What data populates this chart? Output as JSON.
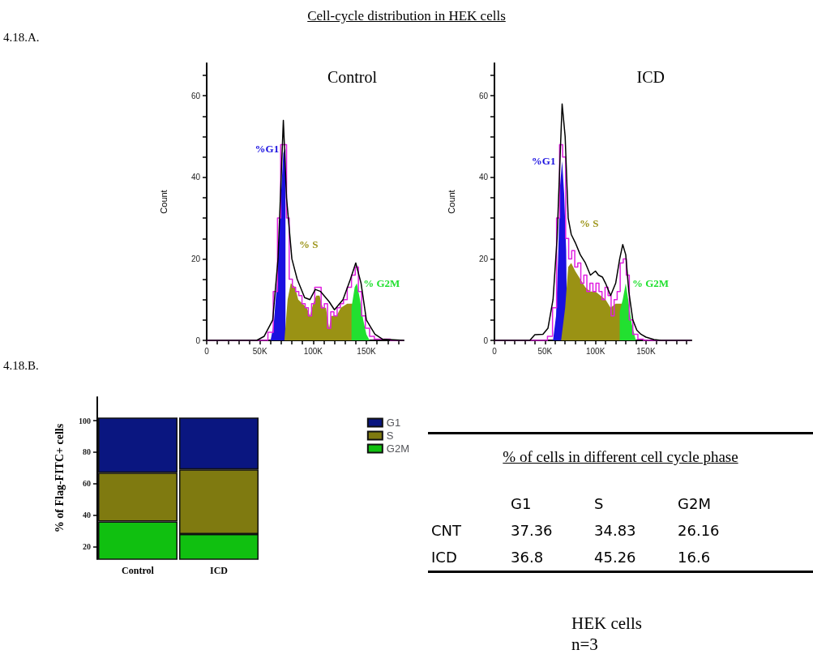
{
  "chart_data": [
    {
      "type": "line",
      "title": "Control",
      "annotations": [
        "Cell-cycle distribution in HEK cells",
        "4.18.A."
      ],
      "ylabel": "Count",
      "xlim": [
        0,
        185000
      ],
      "ylim": [
        0,
        68
      ],
      "xticks": [
        0,
        {
          "value": 10000,
          "label": null
        },
        {
          "value": 20000,
          "label": null
        },
        {
          "value": 30000,
          "label": null
        },
        {
          "value": 40000,
          "label": null
        },
        {
          "value": 50000,
          "label": "50K"
        },
        {
          "value": 60000,
          "label": null
        },
        {
          "value": 70000,
          "label": null
        },
        {
          "value": 80000,
          "label": null
        },
        {
          "value": 90000,
          "label": null
        },
        {
          "value": 100000,
          "label": "100K"
        },
        {
          "value": 110000,
          "label": null
        },
        {
          "value": 120000,
          "label": null
        },
        {
          "value": 130000,
          "label": null
        },
        {
          "value": 140000,
          "label": null
        },
        {
          "value": 150000,
          "label": "150K"
        },
        {
          "value": 160000,
          "label": null
        },
        {
          "value": 170000,
          "label": null
        },
        {
          "value": 180000,
          "label": null
        }
      ],
      "yticks": [
        0,
        {
          "value": 5,
          "label": null
        },
        {
          "value": 10,
          "label": null
        },
        {
          "value": 15,
          "label": null
        },
        20,
        {
          "value": 25,
          "label": null
        },
        {
          "value": 30,
          "label": null
        },
        {
          "value": 35,
          "label": null
        },
        40,
        {
          "value": 45,
          "label": null
        },
        {
          "value": 50,
          "label": null
        },
        {
          "value": 55,
          "label": null
        },
        60,
        {
          "value": 65,
          "label": null
        }
      ],
      "marker": "none",
      "grid": false,
      "legend": false,
      "series": [
        {
          "name": "%G1",
          "type": "area",
          "color": "#1a10e0",
          "x": [
            60000,
            63000,
            66000,
            69000,
            72000,
            74000,
            74000
          ],
          "values": [
            0,
            4,
            14,
            32,
            46,
            47,
            0
          ]
        },
        {
          "name": "% S",
          "type": "area",
          "color": "#9a9214",
          "x": [
            73000,
            76000,
            79000,
            83000,
            86000,
            90000,
            94000,
            97000,
            100000,
            103000,
            106000,
            109000,
            112000,
            115000,
            117000,
            122000,
            126000,
            132000,
            137000,
            137000
          ],
          "values": [
            0,
            10,
            14,
            13,
            10,
            9,
            8,
            6,
            9,
            11,
            11,
            8,
            8,
            3,
            6,
            6,
            8,
            9,
            9,
            0
          ]
        },
        {
          "name": "% G2M",
          "type": "area",
          "color": "#22e030",
          "x": [
            136000,
            136000,
            139000,
            141000,
            144000,
            147000,
            150000,
            153000
          ],
          "values": [
            0,
            8,
            13,
            14,
            10,
            5,
            1.5,
            0
          ]
        },
        {
          "type": "step",
          "color": "#e020e0",
          "x": [
            0,
            55000,
            60000,
            65000,
            68000,
            71000,
            74000,
            76000,
            79000,
            82000,
            85000,
            88000,
            91000,
            94000,
            97000,
            100000,
            103000,
            106000,
            109000,
            112000,
            115000,
            118000,
            121000,
            124000,
            127000,
            130000,
            134000,
            138000,
            141000,
            144000,
            147000,
            151000,
            155000,
            160000,
            185000
          ],
          "values": [
            0,
            0,
            2,
            12,
            30,
            48,
            48,
            30,
            15,
            13,
            12,
            11,
            9,
            8,
            6,
            9,
            13,
            13,
            8,
            9,
            3,
            7,
            6,
            8,
            9,
            10,
            13,
            16,
            18,
            12,
            6,
            3,
            1,
            0.3,
            0
          ]
        },
        {
          "type": "line",
          "color": "#000000",
          "x": [
            0,
            47000,
            54000,
            62000,
            67000,
            72000,
            75000,
            80000,
            85000,
            92000,
            97000,
            102000,
            107000,
            115000,
            120000,
            128000,
            135000,
            140000,
            145000,
            150000,
            158000,
            165000,
            185000
          ],
          "values": [
            0,
            0,
            1,
            5,
            20,
            54,
            35,
            20,
            15,
            10.5,
            10,
            12.5,
            12,
            9.5,
            7.5,
            10,
            15,
            19,
            14,
            5,
            1.5,
            0.3,
            0
          ]
        }
      ]
    },
    {
      "type": "line",
      "title": "ICD",
      "ylabel": "Count",
      "xlim": [
        0,
        195000
      ],
      "ylim": [
        0,
        68
      ],
      "xticks": [
        0,
        {
          "value": 10000,
          "label": null
        },
        {
          "value": 20000,
          "label": null
        },
        {
          "value": 30000,
          "label": null
        },
        {
          "value": 40000,
          "label": null
        },
        {
          "value": 50000,
          "label": "50K"
        },
        {
          "value": 60000,
          "label": null
        },
        {
          "value": 70000,
          "label": null
        },
        {
          "value": 80000,
          "label": null
        },
        {
          "value": 90000,
          "label": null
        },
        {
          "value": 100000,
          "label": "100K"
        },
        {
          "value": 110000,
          "label": null
        },
        {
          "value": 120000,
          "label": null
        },
        {
          "value": 130000,
          "label": null
        },
        {
          "value": 140000,
          "label": null
        },
        {
          "value": 150000,
          "label": "150K"
        },
        {
          "value": 160000,
          "label": null
        },
        {
          "value": 170000,
          "label": null
        },
        {
          "value": 180000,
          "label": null
        },
        {
          "value": 190000,
          "label": null
        }
      ],
      "yticks": [
        0,
        {
          "value": 5,
          "label": null
        },
        {
          "value": 10,
          "label": null
        },
        {
          "value": 15,
          "label": null
        },
        20,
        {
          "value": 25,
          "label": null
        },
        {
          "value": 30,
          "label": null
        },
        {
          "value": 35,
          "label": null
        },
        40,
        {
          "value": 45,
          "label": null
        },
        {
          "value": 50,
          "label": null
        },
        {
          "value": 55,
          "label": null
        },
        60,
        {
          "value": 65,
          "label": null
        }
      ],
      "marker": "none",
      "grid": false,
      "legend": false,
      "series": [
        {
          "name": "%G1",
          "type": "area",
          "color": "#1a10e0",
          "x": [
            58000,
            61000,
            63000,
            65000,
            67000,
            69000,
            71000,
            72000
          ],
          "values": [
            0,
            6,
            20,
            38,
            44,
            36,
            22,
            0
          ]
        },
        {
          "name": "% S",
          "type": "area",
          "color": "#9a9214",
          "x": [
            66000,
            70000,
            73000,
            76000,
            80000,
            85000,
            90000,
            95000,
            100000,
            105000,
            110000,
            115000,
            120000,
            124000,
            126000,
            126000
          ],
          "values": [
            0,
            8,
            18,
            19,
            17,
            15,
            13,
            12,
            12,
            11,
            10,
            8,
            9,
            9,
            9,
            0
          ]
        },
        {
          "name": "% G2M",
          "type": "area",
          "color": "#22e030",
          "x": [
            124000,
            124000,
            127000,
            130000,
            133000,
            136000,
            140000
          ],
          "values": [
            0,
            7,
            10,
            14,
            9,
            4,
            0
          ]
        },
        {
          "type": "step",
          "color": "#e020e0",
          "x": [
            0,
            50000,
            55000,
            60000,
            63000,
            66000,
            69000,
            72000,
            75000,
            78000,
            81000,
            84000,
            87000,
            90000,
            93000,
            96000,
            99000,
            102000,
            105000,
            108000,
            111000,
            114000,
            117000,
            120000,
            123000,
            126000,
            129000,
            132000,
            135000,
            139000,
            145000,
            150000,
            195000
          ],
          "values": [
            0,
            0,
            1,
            8,
            30,
            48,
            45,
            25,
            20,
            22,
            18,
            19,
            14,
            16,
            12,
            14,
            12,
            14,
            12,
            10,
            13,
            11,
            6,
            10,
            12,
            19,
            20,
            16,
            5,
            1.5,
            0.3,
            0,
            0
          ]
        },
        {
          "type": "line",
          "color": "#000000",
          "x": [
            0,
            35000,
            40000,
            48000,
            53000,
            58000,
            62000,
            65000,
            67000,
            70000,
            73000,
            76000,
            80000,
            85000,
            90000,
            95000,
            100000,
            103000,
            107000,
            110000,
            115000,
            120000,
            124000,
            127000,
            130000,
            133000,
            137000,
            141000,
            145000,
            150000,
            158000,
            165000,
            195000
          ],
          "values": [
            0,
            0,
            1.4,
            1.5,
            3,
            10,
            25,
            45,
            58,
            50,
            30,
            26,
            24,
            21,
            19,
            16,
            17,
            16,
            15.5,
            14,
            11,
            14,
            20,
            23.5,
            21,
            12,
            5,
            2.5,
            1.5,
            0.8,
            0.2,
            0,
            0
          ]
        }
      ]
    },
    {
      "type": "bar",
      "stacked": true,
      "annotations": [
        "4.18.B."
      ],
      "ylabel": "% of Flag-FITC+ cells",
      "categories": [
        "Control",
        "ICD"
      ],
      "ylim": [
        12,
        115
      ],
      "yticks": [
        20,
        40,
        60,
        80,
        100
      ],
      "grid": false,
      "legend": "right",
      "series": [
        {
          "name": "G2M",
          "color": "#10c010",
          "values": [
            36,
            28
          ]
        },
        {
          "name": "S",
          "color": "#7f7a10",
          "values": [
            31,
            41
          ]
        },
        {
          "name": "G1",
          "color": "#0a1680",
          "values": [
            35,
            33
          ]
        }
      ]
    },
    {
      "type": "other",
      "title": "% of cells in different cell cycle phase",
      "categories": [
        "G1",
        "S",
        "G2M"
      ],
      "data_labels": true,
      "annotations": [
        "HEK cells",
        "n=3"
      ],
      "series": [
        {
          "name": "CNT",
          "values": [
            37.36,
            34.83,
            26.16
          ]
        },
        {
          "name": "ICD",
          "values": [
            36.8,
            45.26,
            16.6
          ]
        }
      ]
    }
  ]
}
